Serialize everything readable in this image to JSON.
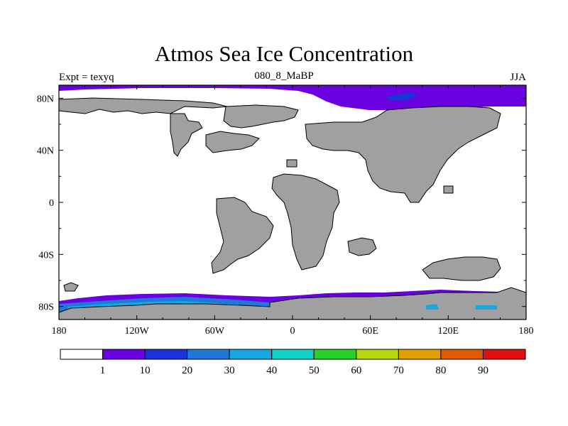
{
  "title": "Atmos Sea Ice Concentration",
  "left_label": "Expt = texyq",
  "center_label": "080_8_MaBP",
  "right_label": "JJA",
  "x_ticks": [
    "180",
    "120W",
    "60W",
    "0",
    "60E",
    "120E",
    "180"
  ],
  "y_ticks": [
    "80N",
    "40N",
    "0",
    "40S",
    "80S"
  ],
  "colorbar": {
    "labels": [
      "1",
      "10",
      "20",
      "30",
      "40",
      "50",
      "60",
      "70",
      "80",
      "90"
    ],
    "colors": [
      "#ffffff",
      "#6a00e0",
      "#1a33d8",
      "#1f77d8",
      "#18a7e0",
      "#10d0c8",
      "#2ad02a",
      "#b4d80a",
      "#e0a000",
      "#e05a00",
      "#e01010"
    ]
  },
  "land_color": "#a0a0a0"
}
